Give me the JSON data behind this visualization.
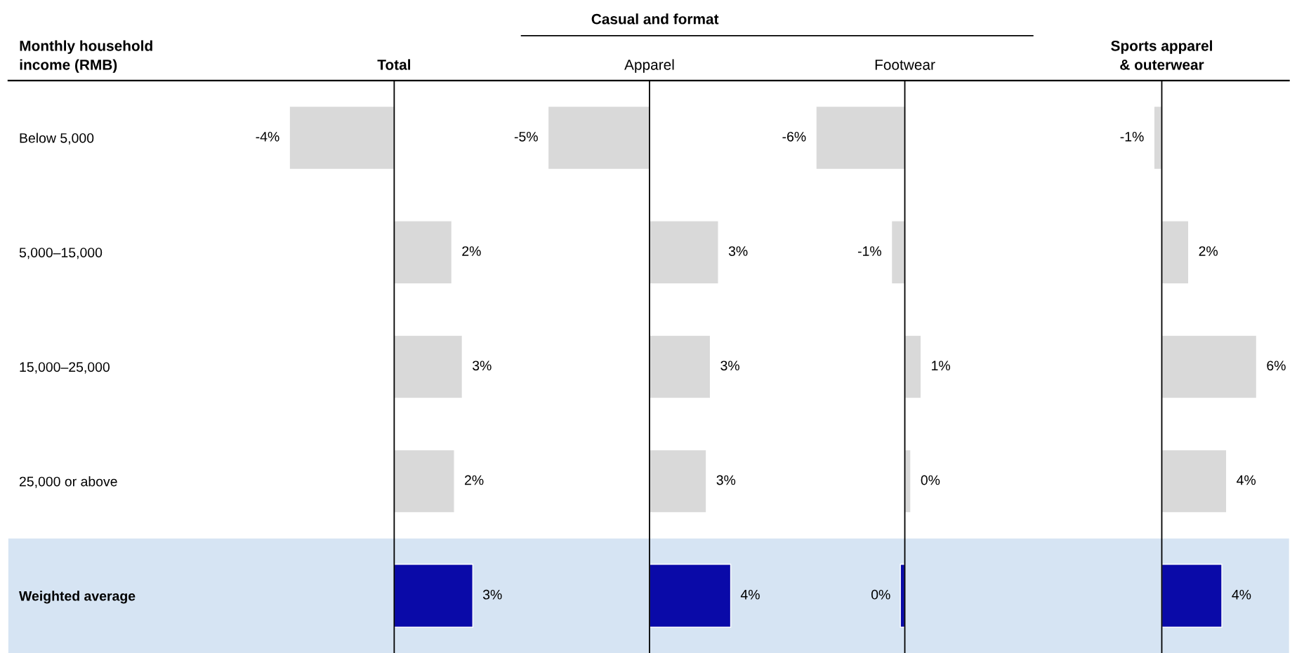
{
  "chart_data": [
    {
      "type": "bar",
      "orientation": "horizontal",
      "title": "Total",
      "ylabel": "Monthly household\nincome (RMB)",
      "categories": [
        "Below 5,000",
        "5,000–15,000",
        "15,000–25,000",
        "25,000 or above",
        "Weighted average"
      ],
      "values": [
        -4.0,
        2.2,
        2.6,
        2.3,
        3.0
      ],
      "value_labels": [
        "-4%",
        "2%",
        "3%",
        "2%",
        "3%"
      ],
      "colors": [
        "#d9d9d9",
        "#d9d9d9",
        "#d9d9d9",
        "#d9d9d9",
        "#0a0aa8"
      ],
      "tick_labels": "y",
      "bands": [
        {
          "axis": "y",
          "from": "Weighted average",
          "to": "Weighted average",
          "color": "#d6e4f3"
        }
      ]
    },
    {
      "type": "bar",
      "orientation": "horizontal",
      "title": "Apparel",
      "annotations": [
        "Casual and format"
      ],
      "values": [
        -5.0,
        3.4,
        3.0,
        2.8,
        4.0
      ],
      "value_labels": [
        "-5%",
        "3%",
        "3%",
        "3%",
        "4%"
      ],
      "colors": [
        "#d9d9d9",
        "#d9d9d9",
        "#d9d9d9",
        "#d9d9d9",
        "#0a0aa8"
      ],
      "tick_labels": false
    },
    {
      "type": "bar",
      "orientation": "horizontal",
      "title": "Footwear",
      "values": [
        -6.0,
        -0.9,
        1.1,
        0.4,
        -0.3
      ],
      "value_labels": [
        "-6%",
        "-1%",
        "1%",
        "0%",
        "0%"
      ],
      "colors": [
        "#d9d9d9",
        "#d9d9d9",
        "#d9d9d9",
        "#d9d9d9",
        "#0a0aa8"
      ],
      "tick_labels": false
    },
    {
      "type": "bar",
      "orientation": "horizontal",
      "title": "Sports apparel\n& outerwear",
      "values": [
        -0.5,
        1.7,
        6.0,
        4.1,
        3.8
      ],
      "value_labels": [
        "-1%",
        "2%",
        "6%",
        "4%",
        "4%"
      ],
      "colors": [
        "#d9d9d9",
        "#d9d9d9",
        "#d9d9d9",
        "#d9d9d9",
        "#0a0aa8"
      ],
      "tick_labels": false
    }
  ]
}
